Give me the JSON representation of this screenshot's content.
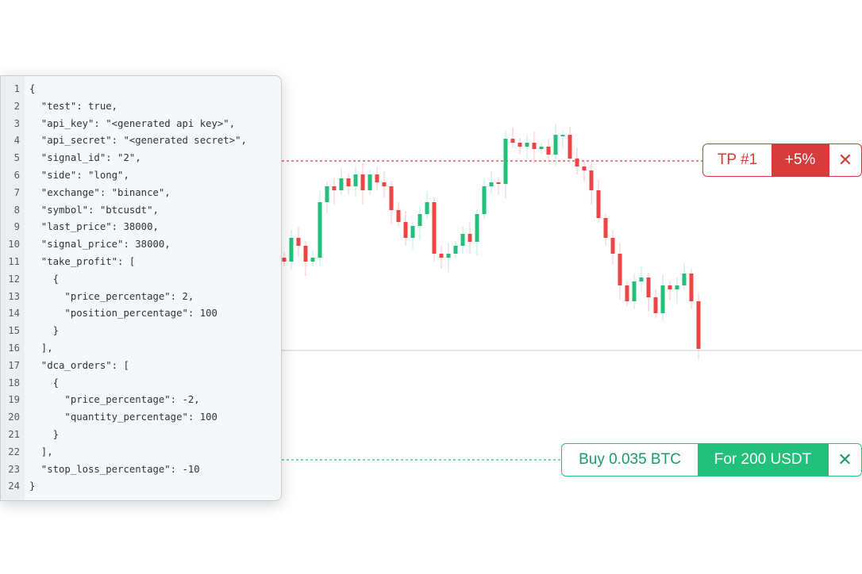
{
  "code_lines": [
    "{",
    "  \"test\": true,",
    "  \"api_key\": \"<generated api key>\",",
    "  \"api_secret\": \"<generated secret>\",",
    "  \"signal_id\": \"2\",",
    "  \"side\": \"long\",",
    "  \"exchange\": \"binance\",",
    "  \"symbol\": \"btcusdt\",",
    "  \"last_price\": 38000,",
    "  \"signal_price\": 38000,",
    "  \"take_profit\": [",
    "    {",
    "      \"price_percentage\": 2,",
    "      \"position_percentage\": 100",
    "    }",
    "  ],",
    "  \"dca_orders\": [",
    "    {",
    "      \"price_percentage\": -2,",
    "      \"quantity_percentage\": 100",
    "    }",
    "  ],",
    "  \"stop_loss_percentage\": -10",
    "}"
  ],
  "take_profit": {
    "label": "TP #1",
    "value": "+5%",
    "close": "✕",
    "color": "#d63c3c"
  },
  "buy_order": {
    "label": "Buy 0.035 BTC",
    "value": "For 200 USDT",
    "close": "✕",
    "color": "#22c07a"
  },
  "chart_data": {
    "type": "candlestick",
    "closes": [
      170,
      200,
      190,
      170,
      175,
      245,
      265,
      260,
      275,
      265,
      280,
      260,
      280,
      270,
      265,
      235,
      220,
      200,
      215,
      230,
      245,
      180,
      175,
      180,
      190,
      205,
      195,
      230,
      265,
      270,
      268,
      325,
      320,
      315,
      320,
      312,
      315,
      305,
      330,
      330,
      300,
      290,
      285,
      260,
      225,
      200,
      180,
      140,
      120,
      145,
      150,
      125,
      105,
      140,
      135,
      140,
      155,
      120,
      60
    ],
    "first_open": 175,
    "up_color": "#22c07a",
    "down_color": "#ef4444"
  }
}
